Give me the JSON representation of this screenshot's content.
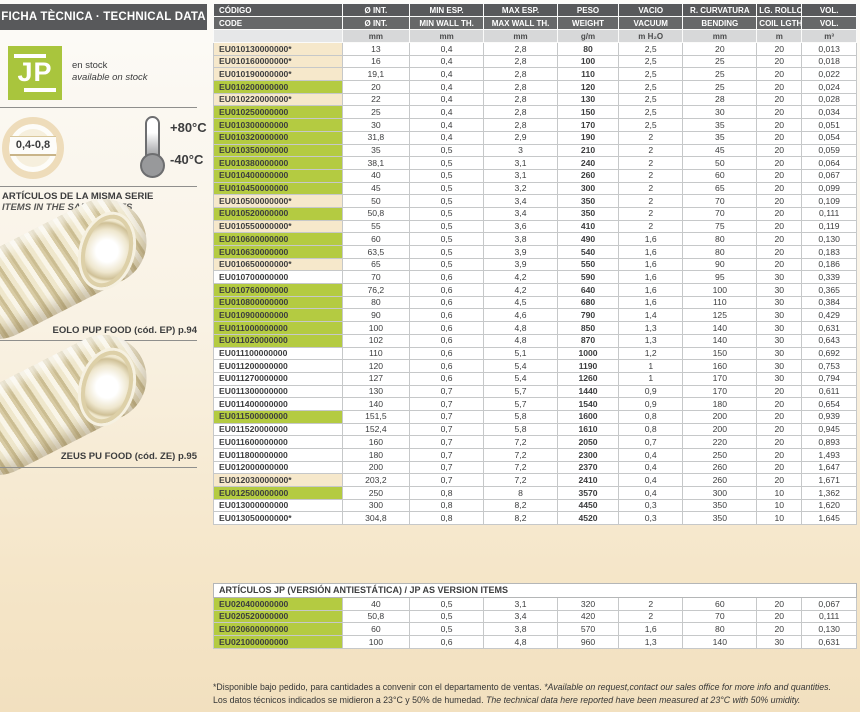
{
  "sidebar": {
    "header": "FICHA TÈCNICA · TECHNICAL DATA",
    "logo_text": "JP",
    "stock_es": "en stock",
    "stock_en": "available on stock",
    "thickness_badge": "0,4-0,8",
    "temp_max": "+80°C",
    "temp_min": "-40°C",
    "series_title_es": "ARTÍCULOS DE LA MISMA SERIE",
    "series_title_en": "ITEMS IN THE SAME SERIES",
    "related": [
      {
        "caption": "EOLO PUP FOOD (cód. EP) p.94"
      },
      {
        "caption": "ZEUS PU FOOD (cód. ZE) p.95"
      }
    ]
  },
  "table": {
    "headers_row1": [
      "CÓDIGO",
      "Ø INT.",
      "MIN ESP.",
      "MAX ESP.",
      "PESO",
      "VACIO",
      "R. CURVATURA",
      "LG. ROLLO",
      "VOL."
    ],
    "headers_row2": [
      "CODE",
      "Ø INT.",
      "MIN WALL TH.",
      "MAX WALL TH.",
      "WEIGHT",
      "VACUUM",
      "BENDING",
      "COIL LGTH.",
      "VOL."
    ],
    "units": [
      "",
      "mm",
      "mm",
      "mm",
      "g/m",
      "m H₂O",
      "mm",
      "m",
      "m³"
    ],
    "rows": [
      {
        "code": "EU010130000000*",
        "highlight": "beige",
        "values": [
          "13",
          "0,4",
          "2,8",
          "80",
          "2,5",
          "20",
          "20",
          "0,013"
        ]
      },
      {
        "code": "EU010160000000*",
        "highlight": "beige",
        "values": [
          "16",
          "0,4",
          "2,8",
          "100",
          "2,5",
          "25",
          "20",
          "0,018"
        ]
      },
      {
        "code": "EU010190000000*",
        "highlight": "beige",
        "values": [
          "19,1",
          "0,4",
          "2,8",
          "110",
          "2,5",
          "25",
          "20",
          "0,022"
        ]
      },
      {
        "code": "EU010200000000",
        "highlight": "green",
        "values": [
          "20",
          "0,4",
          "2,8",
          "120",
          "2,5",
          "25",
          "20",
          "0,024"
        ]
      },
      {
        "code": "EU010220000000*",
        "highlight": "beige",
        "values": [
          "22",
          "0,4",
          "2,8",
          "130",
          "2,5",
          "28",
          "20",
          "0,028"
        ]
      },
      {
        "code": "EU010250000000",
        "highlight": "green",
        "values": [
          "25",
          "0,4",
          "2,8",
          "150",
          "2,5",
          "30",
          "20",
          "0,034"
        ]
      },
      {
        "code": "EU010300000000",
        "highlight": "green",
        "values": [
          "30",
          "0,4",
          "2,8",
          "170",
          "2,5",
          "35",
          "20",
          "0,051"
        ]
      },
      {
        "code": "EU010320000000",
        "highlight": "green",
        "values": [
          "31,8",
          "0,4",
          "2,9",
          "190",
          "2",
          "35",
          "20",
          "0,054"
        ]
      },
      {
        "code": "EU010350000000",
        "highlight": "green",
        "values": [
          "35",
          "0,5",
          "3",
          "210",
          "2",
          "45",
          "20",
          "0,059"
        ]
      },
      {
        "code": "EU010380000000",
        "highlight": "green",
        "values": [
          "38,1",
          "0,5",
          "3,1",
          "240",
          "2",
          "50",
          "20",
          "0,064"
        ]
      },
      {
        "code": "EU010400000000",
        "highlight": "green",
        "values": [
          "40",
          "0,5",
          "3,1",
          "260",
          "2",
          "60",
          "20",
          "0,067"
        ]
      },
      {
        "code": "EU010450000000",
        "highlight": "green",
        "values": [
          "45",
          "0,5",
          "3,2",
          "300",
          "2",
          "65",
          "20",
          "0,099"
        ]
      },
      {
        "code": "EU010500000000*",
        "highlight": "beige",
        "values": [
          "50",
          "0,5",
          "3,4",
          "350",
          "2",
          "70",
          "20",
          "0,109"
        ]
      },
      {
        "code": "EU010520000000",
        "highlight": "green",
        "values": [
          "50,8",
          "0,5",
          "3,4",
          "350",
          "2",
          "70",
          "20",
          "0,111"
        ]
      },
      {
        "code": "EU010550000000*",
        "highlight": "beige",
        "values": [
          "55",
          "0,5",
          "3,6",
          "410",
          "2",
          "75",
          "20",
          "0,119"
        ]
      },
      {
        "code": "EU010600000000",
        "highlight": "green",
        "values": [
          "60",
          "0,5",
          "3,8",
          "490",
          "1,6",
          "80",
          "20",
          "0,130"
        ]
      },
      {
        "code": "EU010630000000",
        "highlight": "green",
        "values": [
          "63,5",
          "0,5",
          "3,9",
          "540",
          "1,6",
          "80",
          "20",
          "0,183"
        ]
      },
      {
        "code": "EU010650000000*",
        "highlight": "beige",
        "values": [
          "65",
          "0,5",
          "3,9",
          "550",
          "1,6",
          "90",
          "20",
          "0,186"
        ]
      },
      {
        "code": "EU010700000000",
        "highlight": "white",
        "values": [
          "70",
          "0,6",
          "4,2",
          "590",
          "1,6",
          "95",
          "30",
          "0,339"
        ]
      },
      {
        "code": "EU010760000000",
        "highlight": "green",
        "values": [
          "76,2",
          "0,6",
          "4,2",
          "640",
          "1,6",
          "100",
          "30",
          "0,365"
        ]
      },
      {
        "code": "EU010800000000",
        "highlight": "green",
        "values": [
          "80",
          "0,6",
          "4,5",
          "680",
          "1,6",
          "110",
          "30",
          "0,384"
        ]
      },
      {
        "code": "EU010900000000",
        "highlight": "green",
        "values": [
          "90",
          "0,6",
          "4,6",
          "790",
          "1,4",
          "125",
          "30",
          "0,429"
        ]
      },
      {
        "code": "EU011000000000",
        "highlight": "green",
        "values": [
          "100",
          "0,6",
          "4,8",
          "850",
          "1,3",
          "140",
          "30",
          "0,631"
        ]
      },
      {
        "code": "EU011020000000",
        "highlight": "green",
        "values": [
          "102",
          "0,6",
          "4,8",
          "870",
          "1,3",
          "140",
          "30",
          "0,643"
        ]
      },
      {
        "code": "EU011100000000",
        "highlight": "white",
        "values": [
          "110",
          "0,6",
          "5,1",
          "1000",
          "1,2",
          "150",
          "30",
          "0,692"
        ]
      },
      {
        "code": "EU011200000000",
        "highlight": "white",
        "values": [
          "120",
          "0,6",
          "5,4",
          "1190",
          "1",
          "160",
          "30",
          "0,753"
        ]
      },
      {
        "code": "EU011270000000",
        "highlight": "white",
        "values": [
          "127",
          "0,6",
          "5,4",
          "1260",
          "1",
          "170",
          "30",
          "0,794"
        ]
      },
      {
        "code": "EU011300000000",
        "highlight": "white",
        "values": [
          "130",
          "0,7",
          "5,7",
          "1440",
          "0,9",
          "170",
          "20",
          "0,611"
        ]
      },
      {
        "code": "EU011400000000",
        "highlight": "white",
        "values": [
          "140",
          "0,7",
          "5,7",
          "1540",
          "0,9",
          "180",
          "20",
          "0,654"
        ]
      },
      {
        "code": "EU011500000000",
        "highlight": "green",
        "values": [
          "151,5",
          "0,7",
          "5,8",
          "1600",
          "0,8",
          "200",
          "20",
          "0,939"
        ]
      },
      {
        "code": "EU011520000000",
        "highlight": "white",
        "values": [
          "152,4",
          "0,7",
          "5,8",
          "1610",
          "0,8",
          "200",
          "20",
          "0,945"
        ]
      },
      {
        "code": "EU011600000000",
        "highlight": "white",
        "values": [
          "160",
          "0,7",
          "7,2",
          "2050",
          "0,7",
          "220",
          "20",
          "0,893"
        ]
      },
      {
        "code": "EU011800000000",
        "highlight": "white",
        "values": [
          "180",
          "0,7",
          "7,2",
          "2300",
          "0,4",
          "250",
          "20",
          "1,493"
        ]
      },
      {
        "code": "EU012000000000",
        "highlight": "white",
        "values": [
          "200",
          "0,7",
          "7,2",
          "2370",
          "0,4",
          "260",
          "20",
          "1,647"
        ]
      },
      {
        "code": "EU012030000000*",
        "highlight": "beige",
        "values": [
          "203,2",
          "0,7",
          "7,2",
          "2410",
          "0,4",
          "260",
          "20",
          "1,671"
        ]
      },
      {
        "code": "EU012500000000",
        "highlight": "green",
        "values": [
          "250",
          "0,8",
          "8",
          "3570",
          "0,4",
          "300",
          "10",
          "1,362"
        ]
      },
      {
        "code": "EU013000000000",
        "highlight": "white",
        "values": [
          "300",
          "0,8",
          "8,2",
          "4450",
          "0,3",
          "350",
          "10",
          "1,620"
        ]
      },
      {
        "code": "EU013050000000*",
        "highlight": "white",
        "values": [
          "304,8",
          "0,8",
          "8,2",
          "4520",
          "0,3",
          "350",
          "10",
          "1,645"
        ]
      }
    ]
  },
  "as_table": {
    "title": "ARTÍCULOS JP (VERSIÓN ANTIESTÁTICA) / JP AS VERSION ITEMS",
    "rows": [
      {
        "code": "EU020400000000",
        "highlight": "green",
        "values": [
          "40",
          "0,5",
          "3,1",
          "320",
          "2",
          "60",
          "20",
          "0,067"
        ]
      },
      {
        "code": "EU020520000000",
        "highlight": "green",
        "values": [
          "50,8",
          "0,5",
          "3,4",
          "420",
          "2",
          "70",
          "20",
          "0,111"
        ]
      },
      {
        "code": "EU020600000000",
        "highlight": "green",
        "values": [
          "60",
          "0,5",
          "3,8",
          "570",
          "1,6",
          "80",
          "20",
          "0,130"
        ]
      },
      {
        "code": "EU021000000000",
        "highlight": "green",
        "values": [
          "100",
          "0,6",
          "4,8",
          "960",
          "1,3",
          "140",
          "30",
          "0,631"
        ]
      }
    ]
  },
  "footer": {
    "line1_es": "*Disponible bajo pedido, para cantidades a convenir con el departamento de ventas. ",
    "line1_en": "*Available on request,contact our sales office for more info and quantities.",
    "line2_es": "Los datos técnicos indicados se midieron a 23°C y 50% de humedad. ",
    "line2_en": "The technical data here reported have been measured at 23°C with 50% umidity."
  },
  "colors": {
    "brand_green": "#a9c53d",
    "row_green": "#b4cb41",
    "row_beige": "#f6e8cb",
    "header_dark": "#58595b",
    "header_mid": "#676869",
    "unit_gray": "#d7d8d9",
    "page_cream": "#f2e0bf"
  }
}
